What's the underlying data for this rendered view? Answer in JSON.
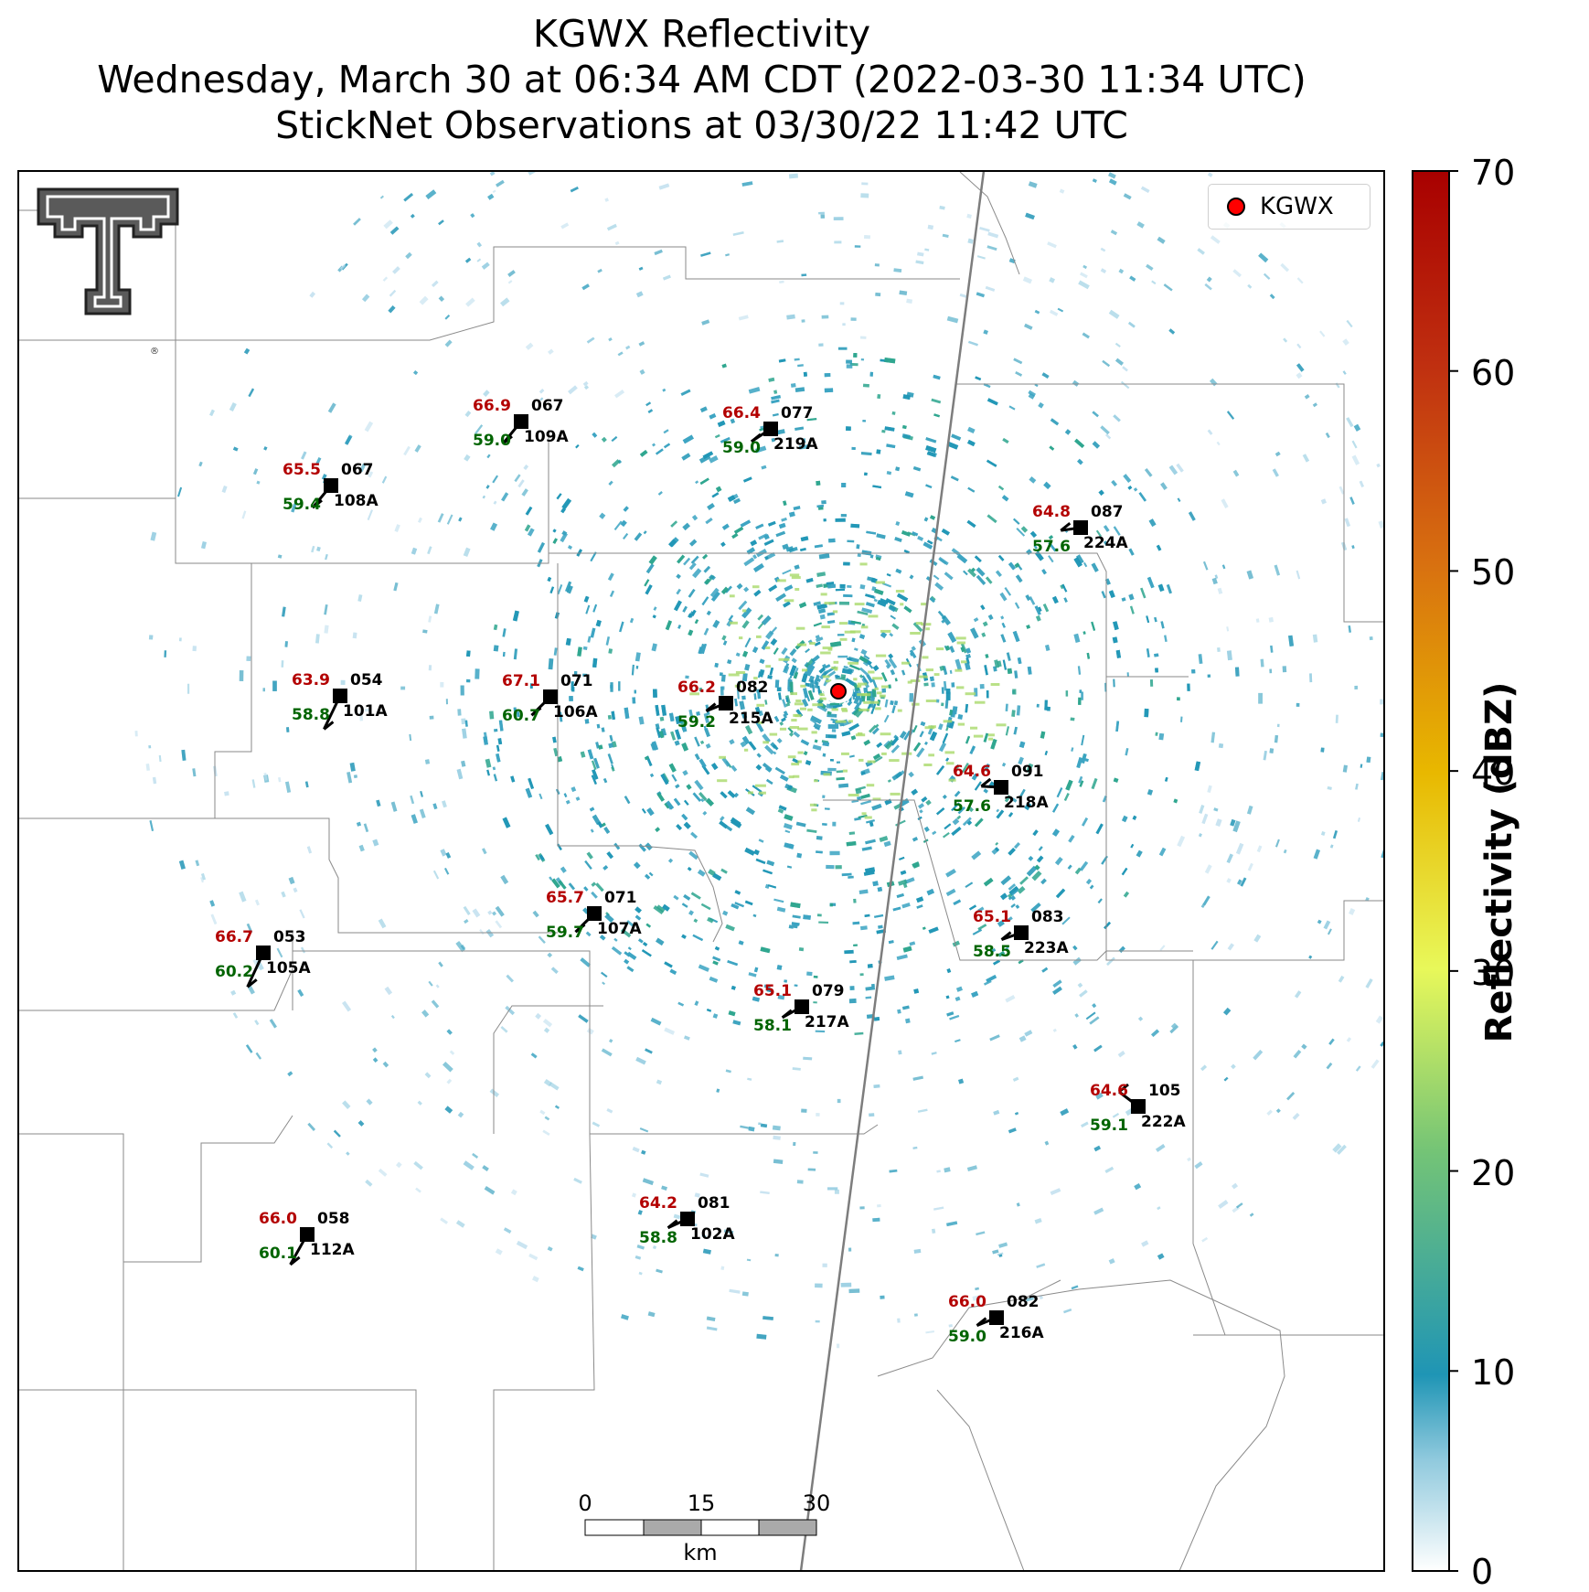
{
  "title": {
    "line1": "KGWX Reflectivity",
    "line2": "Wednesday, March 30 at 06:34 AM CDT (2022-03-30 11:34 UTC)",
    "line3": "StickNet Observations at 03/30/22 11:42 UTC"
  },
  "legend": {
    "label": "KGWX",
    "marker_color": "#ff0000"
  },
  "colorbar": {
    "label": "Reflectivity (dBZ)",
    "ticks": [
      "0",
      "10",
      "20",
      "30",
      "40",
      "50",
      "60",
      "70"
    ],
    "range": [
      0,
      70
    ],
    "colors": [
      "#ffffff",
      "#1f95b5",
      "#74c476",
      "#f0f050",
      "#e8b800",
      "#d06010",
      "#a80000"
    ]
  },
  "scale_bar": {
    "ticks": [
      "0",
      "15",
      "30"
    ],
    "unit": "km"
  },
  "logo": {
    "name": "Texas Tech Double T",
    "mark": "®"
  },
  "stations": [
    {
      "id": "109A",
      "temp": "66.9",
      "dew": "59.0",
      "dir": "067"
    },
    {
      "id": "219A",
      "temp": "66.4",
      "dew": "59.0",
      "dir": "077"
    },
    {
      "id": "108A",
      "temp": "65.5",
      "dew": "59.4",
      "dir": "067"
    },
    {
      "id": "224A",
      "temp": "64.8",
      "dew": "57.6",
      "dir": "087"
    },
    {
      "id": "101A",
      "temp": "63.9",
      "dew": "58.8",
      "dir": "054"
    },
    {
      "id": "106A",
      "temp": "67.1",
      "dew": "60.7",
      "dir": "071"
    },
    {
      "id": "215A",
      "temp": "66.2",
      "dew": "59.2",
      "dir": "082"
    },
    {
      "id": "218A",
      "temp": "64.6",
      "dew": "57.6",
      "dir": "091"
    },
    {
      "id": "107A",
      "temp": "65.7",
      "dew": "59.7",
      "dir": "071"
    },
    {
      "id": "223A",
      "temp": "65.1",
      "dew": "58.5",
      "dir": "083"
    },
    {
      "id": "105A",
      "temp": "66.7",
      "dew": "60.2",
      "dir": "053"
    },
    {
      "id": "217A",
      "temp": "65.1",
      "dew": "58.1",
      "dir": "079"
    },
    {
      "id": "222A",
      "temp": "64.6",
      "dew": "59.1",
      "dir": "105"
    },
    {
      "id": "102A",
      "temp": "64.2",
      "dew": "58.8",
      "dir": "081"
    },
    {
      "id": "112A",
      "temp": "66.0",
      "dew": "60.1",
      "dir": "058"
    },
    {
      "id": "216A",
      "temp": "66.0",
      "dew": "59.0",
      "dir": "082"
    }
  ]
}
